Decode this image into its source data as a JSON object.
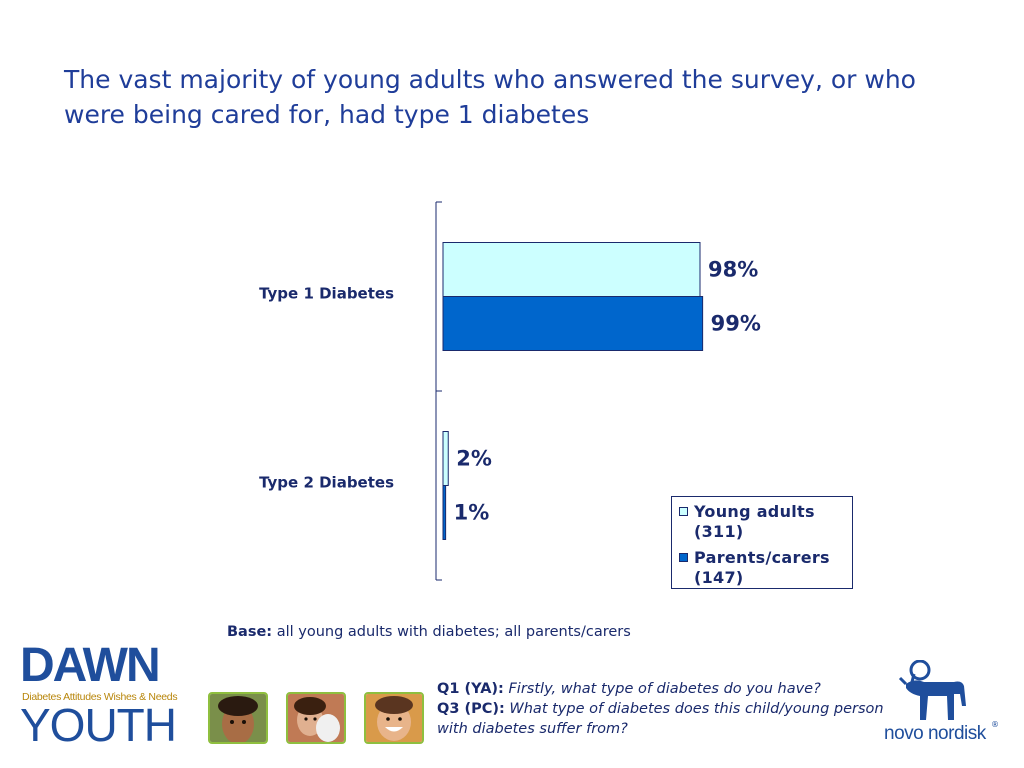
{
  "slide": {
    "title": "The vast majority of young adults who answered the survey, or who were being cared for, had type 1 diabetes",
    "base_label": "Base:",
    "base_text": "all young adults with diabetes; all parents/carers",
    "questions": [
      {
        "key": "Q1 (YA):",
        "text": "Firstly, what type of diabetes do you have?"
      },
      {
        "key": "Q3 (PC):",
        "text": "What type of diabetes does this child/young person with diabetes suffer from?"
      }
    ]
  },
  "branding": {
    "dawn": "DAWN",
    "dawn_subtitle": "Diabetes Attitudes Wishes & Needs",
    "youth": "YOUTH",
    "novo": "novo nordisk",
    "registered": "®"
  },
  "colors": {
    "title": "#1f3d99",
    "young_adults": "#ccffff",
    "parents_carers": "#0066cc",
    "axis": "#1a2a6c"
  },
  "chart_data": {
    "type": "bar",
    "orientation": "horizontal",
    "categories": [
      "Type 1 Diabetes",
      "Type 2 Diabetes"
    ],
    "series": [
      {
        "name": "Young adults (311)",
        "values": [
          98,
          2
        ],
        "labels": [
          "98%",
          "2%"
        ],
        "color": "#ccffff"
      },
      {
        "name": "Parents/carers (147)",
        "values": [
          99,
          1
        ],
        "labels": [
          "99%",
          "1%"
        ],
        "color": "#0066cc"
      }
    ],
    "xlim": [
      0,
      100
    ],
    "legend_position": "bottom-right",
    "grid": false
  }
}
